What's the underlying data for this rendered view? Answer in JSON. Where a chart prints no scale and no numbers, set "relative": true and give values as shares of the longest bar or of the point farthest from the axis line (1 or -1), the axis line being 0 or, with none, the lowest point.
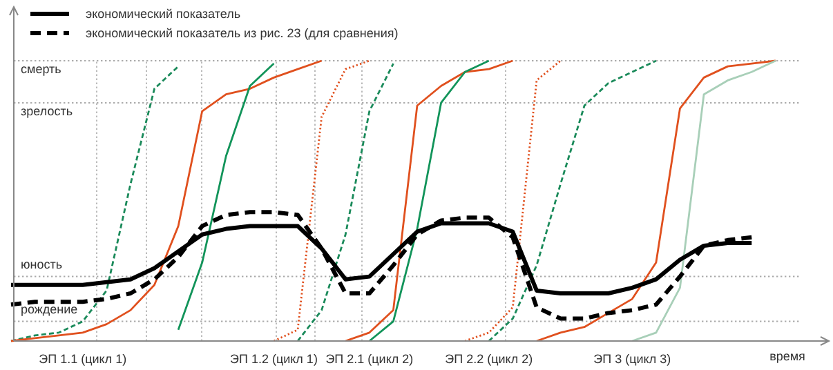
{
  "chart_data": {
    "type": "line",
    "xlabel": "время",
    "relative": true,
    "legend": "top left",
    "marker": "none",
    "categories": [
      null,
      null,
      null,
      "ЭП 1.1 (цикл 1)",
      null,
      null,
      null,
      null,
      null,
      null,
      null,
      "ЭП 1.2 (цикл 1)",
      null,
      null,
      null,
      "ЭП 2.1 (цикл 2)",
      null,
      null,
      null,
      null,
      "ЭП 2.2 (цикл 2)",
      null,
      null,
      null,
      null,
      null,
      "ЭП 3 (цикл 3)",
      null,
      null,
      null,
      null,
      null,
      null,
      null,
      null
    ],
    "ref_lines": [
      {
        "axis": "y",
        "value": 0.07,
        "label": "рождение",
        "color": "#aaaaaa",
        "line_style": "dotted"
      },
      {
        "axis": "y",
        "value": 0.23,
        "label": "юность",
        "color": "#aaaaaa",
        "line_style": "dotted"
      },
      {
        "axis": "y",
        "value": 0.85,
        "label": "зрелость",
        "color": "#aaaaaa",
        "line_style": "dotted"
      },
      {
        "axis": "y",
        "value": 1,
        "label": "смерть",
        "color": "#aaaaaa",
        "line_style": "dotted"
      }
    ],
    "series": [
      {
        "color": "#1a8a5a",
        "line_style": "dashed",
        "values": [
          0,
          0.02,
          0.03,
          0.07,
          0.18,
          0.56,
          0.9,
          0.98,
          null,
          null,
          null,
          null,
          null,
          null,
          null,
          null,
          null,
          null,
          null,
          null,
          null,
          null,
          null,
          null,
          null,
          null,
          null,
          null,
          null,
          null,
          null,
          null,
          null,
          null,
          null
        ]
      },
      {
        "color": "#e0501e",
        "line_style": "solid",
        "values": [
          0,
          0.01,
          0.02,
          0.03,
          0.06,
          0.11,
          0.2,
          0.41,
          0.82,
          0.88,
          0.9,
          0.94,
          0.97,
          1.0,
          null,
          null,
          null,
          null,
          null,
          null,
          null,
          null,
          null,
          null,
          null,
          null,
          null,
          null,
          null,
          null,
          null,
          null,
          null,
          null,
          null
        ]
      },
      {
        "color": "#12945a",
        "line_style": "solid",
        "values": [
          null,
          null,
          null,
          null,
          null,
          null,
          null,
          0.04,
          0.28,
          0.66,
          0.91,
          0.99,
          null,
          null,
          null,
          null,
          null,
          null,
          null,
          null,
          null,
          null,
          null,
          null,
          null,
          null,
          null,
          null,
          null,
          null,
          null,
          null,
          null,
          null,
          null
        ]
      },
      {
        "color": "#e0501e",
        "line_style": "dotted",
        "values": [
          null,
          null,
          null,
          null,
          null,
          null,
          null,
          null,
          null,
          null,
          null,
          0,
          0.04,
          0.8,
          0.97,
          1.0,
          null,
          null,
          null,
          null,
          null,
          null,
          null,
          null,
          null,
          null,
          null,
          null,
          null,
          null,
          null,
          null,
          null,
          null,
          null
        ]
      },
      {
        "color": "#1a8a5a",
        "line_style": "dashed",
        "values": [
          null,
          null,
          null,
          null,
          null,
          null,
          null,
          null,
          null,
          null,
          null,
          null,
          0,
          0.11,
          0.38,
          0.82,
          0.99,
          null,
          null,
          null,
          null,
          null,
          null,
          null,
          null,
          null,
          null,
          null,
          null,
          null,
          null,
          null,
          null,
          null,
          null
        ]
      },
      {
        "color": "#e0501e",
        "line_style": "solid",
        "values": [
          null,
          null,
          null,
          null,
          null,
          null,
          null,
          null,
          null,
          null,
          null,
          null,
          null,
          null,
          0,
          0.03,
          0.11,
          0.84,
          0.91,
          0.96,
          0.97,
          1.0,
          null,
          null,
          null,
          null,
          null,
          null,
          null,
          null,
          null,
          null,
          null,
          null,
          null
        ]
      },
      {
        "color": "#12945a",
        "line_style": "solid",
        "values": [
          null,
          null,
          null,
          null,
          null,
          null,
          null,
          null,
          null,
          null,
          null,
          null,
          null,
          null,
          null,
          0,
          0.07,
          0.4,
          0.85,
          0.96,
          1.0,
          null,
          null,
          null,
          null,
          null,
          null,
          null,
          null,
          null,
          null,
          null,
          null,
          null,
          null
        ]
      },
      {
        "color": "#e0501e",
        "line_style": "dotted",
        "values": [
          null,
          null,
          null,
          null,
          null,
          null,
          null,
          null,
          null,
          null,
          null,
          null,
          null,
          null,
          null,
          null,
          null,
          null,
          null,
          0,
          0.03,
          0.12,
          0.93,
          1.0,
          null,
          null,
          null,
          null,
          null,
          null,
          null,
          null,
          null,
          null,
          null
        ]
      },
      {
        "color": "#1a8a5a",
        "line_style": "dashed",
        "values": [
          null,
          null,
          null,
          null,
          null,
          null,
          null,
          null,
          null,
          null,
          null,
          null,
          null,
          null,
          null,
          null,
          null,
          null,
          null,
          null,
          0,
          0.08,
          0.27,
          0.56,
          0.84,
          0.92,
          0.96,
          1.0,
          null,
          null,
          null,
          null,
          null,
          null,
          null
        ]
      },
      {
        "color": "#e0501e",
        "line_style": "solid",
        "values": [
          null,
          null,
          null,
          null,
          null,
          null,
          null,
          null,
          null,
          null,
          null,
          null,
          null,
          null,
          null,
          null,
          null,
          null,
          null,
          null,
          null,
          null,
          0,
          0.03,
          0.05,
          0.1,
          0.15,
          0.28,
          0.83,
          0.94,
          0.98,
          0.99,
          1.0,
          null,
          null
        ]
      },
      {
        "color": "#a8cfb8",
        "line_style": "solid",
        "values": [
          null,
          null,
          null,
          null,
          null,
          null,
          null,
          null,
          null,
          null,
          null,
          null,
          null,
          null,
          null,
          null,
          null,
          null,
          null,
          null,
          null,
          null,
          null,
          null,
          null,
          null,
          0,
          0.03,
          0.19,
          0.88,
          0.93,
          0.96,
          1.0,
          null,
          null
        ]
      },
      {
        "name": "экономический показатель",
        "color": "#000000",
        "line_style": "solid",
        "values": [
          0.2,
          0.2,
          0.2,
          0.2,
          0.21,
          0.22,
          0.26,
          0.32,
          0.38,
          0.4,
          0.41,
          0.41,
          0.41,
          0.33,
          0.22,
          0.23,
          0.31,
          0.39,
          0.42,
          0.42,
          0.42,
          0.39,
          0.18,
          0.17,
          0.17,
          0.17,
          0.19,
          0.22,
          0.29,
          0.34,
          0.35,
          0.35,
          null,
          null,
          null
        ]
      },
      {
        "name": "экономический показатель из рис. 23 (для сравнения)",
        "color": "#000000",
        "line_style": "dashed",
        "values": [
          0.13,
          0.14,
          0.14,
          0.14,
          0.15,
          0.17,
          0.22,
          0.3,
          0.41,
          0.45,
          0.46,
          0.46,
          0.45,
          0.33,
          0.17,
          0.17,
          0.27,
          0.38,
          0.43,
          0.44,
          0.44,
          0.37,
          0.12,
          0.08,
          0.08,
          0.1,
          0.11,
          0.13,
          0.23,
          0.34,
          0.36,
          0.37,
          null,
          null,
          null
        ]
      }
    ]
  }
}
